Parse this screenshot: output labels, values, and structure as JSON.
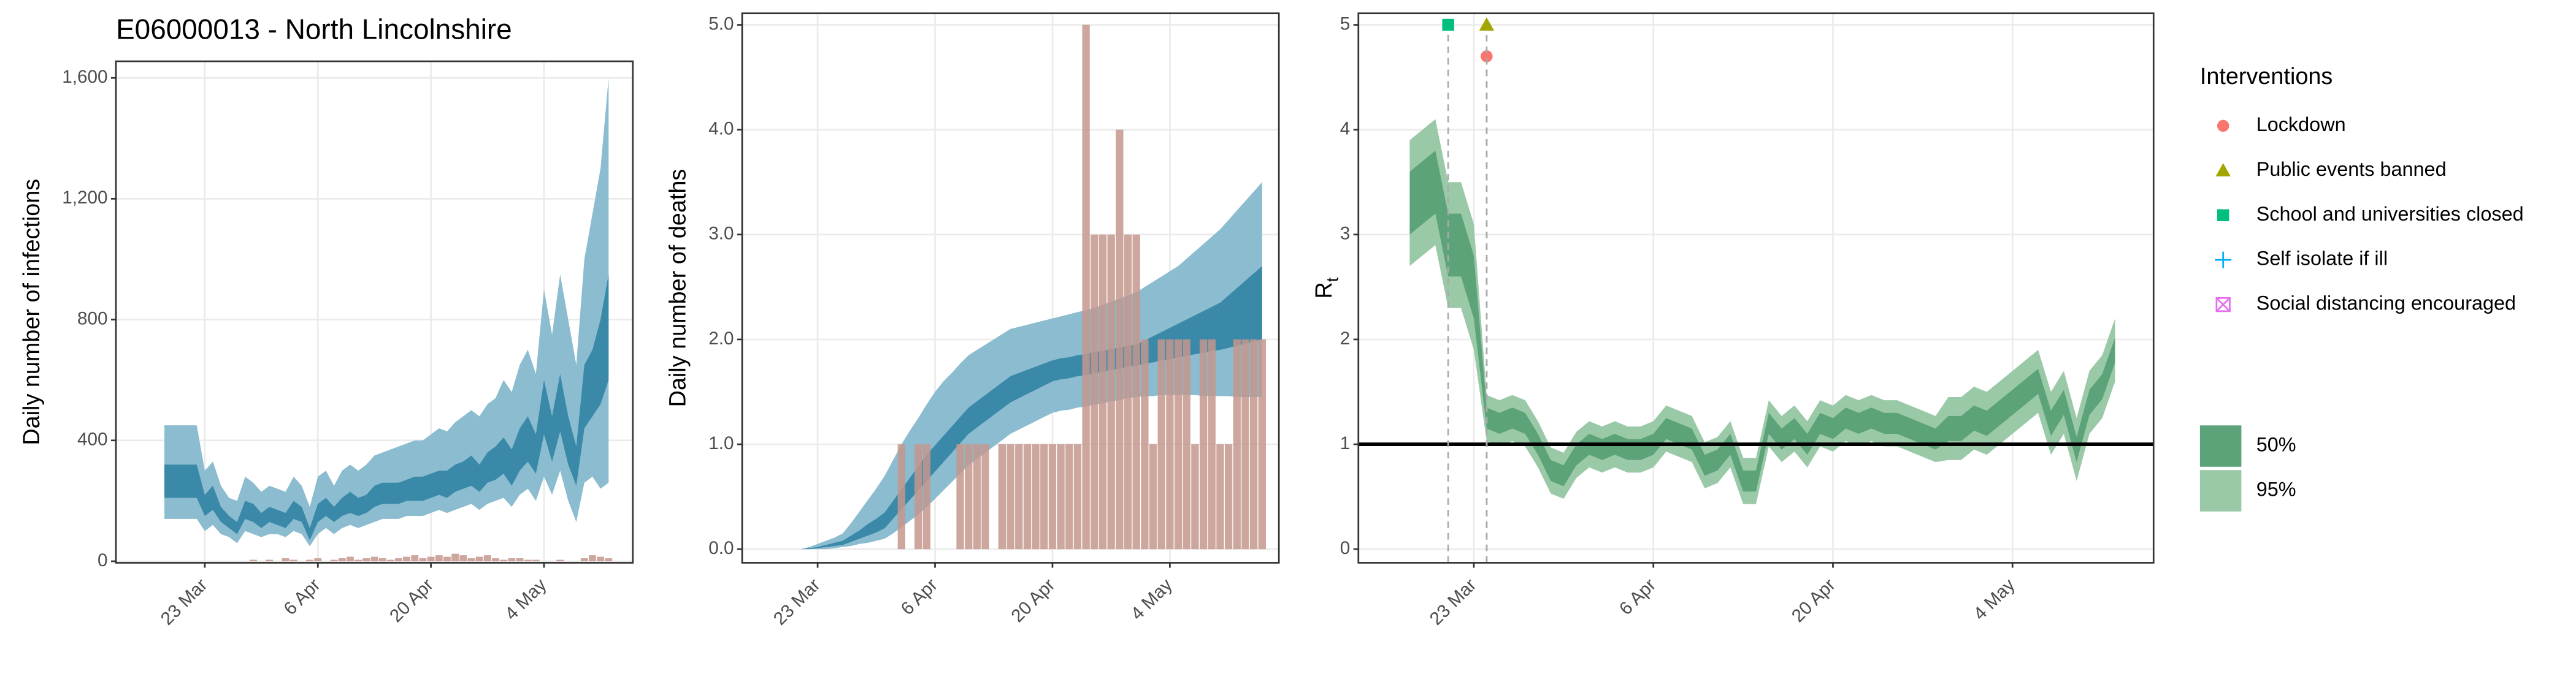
{
  "chart_data": [
    {
      "type": "area",
      "title": "E06000013 - North Lincolnshire",
      "ylabel": "Daily number of infections",
      "x": [
        "18 Mar",
        "19 Mar",
        "20 Mar",
        "21 Mar",
        "22 Mar",
        "23 Mar",
        "24 Mar",
        "25 Mar",
        "26 Mar",
        "27 Mar",
        "28 Mar",
        "29 Mar",
        "30 Mar",
        "31 Mar",
        "1 Apr",
        "2 Apr",
        "3 Apr",
        "4 Apr",
        "5 Apr",
        "6 Apr",
        "7 Apr",
        "8 Apr",
        "9 Apr",
        "10 Apr",
        "11 Apr",
        "12 Apr",
        "13 Apr",
        "14 Apr",
        "15 Apr",
        "16 Apr",
        "17 Apr",
        "18 Apr",
        "19 Apr",
        "20 Apr",
        "21 Apr",
        "22 Apr",
        "23 Apr",
        "24 Apr",
        "25 Apr",
        "26 Apr",
        "27 Apr",
        "28 Apr",
        "29 Apr",
        "30 Apr",
        "1 May",
        "2 May",
        "3 May",
        "4 May",
        "5 May",
        "6 May",
        "7 May",
        "8 May",
        "9 May",
        "10 May",
        "11 May",
        "12 May"
      ],
      "bands": [
        {
          "color": "#8bbccf",
          "upper": [
            450,
            450,
            450,
            450,
            450,
            300,
            330,
            250,
            210,
            200,
            280,
            260,
            230,
            250,
            240,
            230,
            280,
            250,
            180,
            280,
            300,
            250,
            300,
            320,
            300,
            320,
            350,
            360,
            370,
            380,
            390,
            400,
            400,
            420,
            440,
            430,
            460,
            480,
            500,
            480,
            520,
            540,
            600,
            560,
            650,
            700,
            620,
            900,
            750,
            950,
            800,
            650,
            1000,
            1150,
            1300,
            1600
          ],
          "lower": [
            140,
            140,
            140,
            140,
            140,
            100,
            120,
            90,
            80,
            60,
            100,
            90,
            80,
            90,
            90,
            80,
            100,
            90,
            50,
            90,
            110,
            90,
            110,
            120,
            110,
            120,
            130,
            140,
            140,
            140,
            150,
            150,
            150,
            160,
            170,
            160,
            170,
            180,
            190,
            170,
            190,
            200,
            210,
            180,
            220,
            240,
            200,
            280,
            220,
            300,
            200,
            130,
            260,
            280,
            240,
            260
          ]
        },
        {
          "color": "#3a89a8",
          "upper": [
            320,
            320,
            320,
            320,
            320,
            220,
            250,
            180,
            150,
            130,
            200,
            190,
            160,
            180,
            170,
            160,
            200,
            180,
            110,
            190,
            210,
            180,
            210,
            230,
            210,
            220,
            250,
            260,
            260,
            260,
            270,
            280,
            280,
            290,
            300,
            300,
            320,
            330,
            350,
            320,
            360,
            380,
            410,
            370,
            440,
            480,
            420,
            600,
            480,
            620,
            480,
            380,
            650,
            700,
            800,
            950
          ],
          "lower": [
            210,
            210,
            210,
            210,
            210,
            150,
            170,
            130,
            110,
            90,
            140,
            130,
            110,
            130,
            120,
            110,
            140,
            130,
            70,
            130,
            150,
            130,
            150,
            160,
            150,
            160,
            180,
            190,
            190,
            190,
            200,
            200,
            200,
            210,
            220,
            210,
            230,
            240,
            250,
            230,
            260,
            270,
            290,
            250,
            300,
            330,
            290,
            420,
            330,
            430,
            320,
            250,
            440,
            480,
            520,
            600
          ]
        }
      ],
      "bars": {
        "color": "#c4978d",
        "values": [
          null,
          null,
          null,
          null,
          null,
          null,
          null,
          null,
          null,
          null,
          null,
          5,
          0,
          5,
          0,
          10,
          5,
          0,
          5,
          10,
          0,
          5,
          10,
          15,
          5,
          10,
          15,
          10,
          5,
          10,
          15,
          20,
          10,
          15,
          20,
          15,
          25,
          20,
          10,
          15,
          20,
          10,
          5,
          10,
          10,
          5,
          5,
          0,
          0,
          5,
          0,
          0,
          10,
          20,
          15,
          10
        ]
      },
      "xlim": [
        "12 Mar",
        "15 May"
      ],
      "xticks": [
        "23 Mar",
        "6 Apr",
        "20 Apr",
        "4 May"
      ],
      "ylim": [
        -5,
        1655
      ],
      "yticks": [
        0,
        400,
        800,
        {
          "value": 1200,
          "label": "1,200"
        },
        {
          "value": 1600,
          "label": "1,600"
        }
      ],
      "grid": true
    },
    {
      "type": "area",
      "ylabel": "Daily number of deaths",
      "x": [
        "21 Mar",
        "22 Mar",
        "23 Mar",
        "24 Mar",
        "25 Mar",
        "26 Mar",
        "27 Mar",
        "28 Mar",
        "29 Mar",
        "30 Mar",
        "31 Mar",
        "1 Apr",
        "2 Apr",
        "3 Apr",
        "4 Apr",
        "5 Apr",
        "6 Apr",
        "7 Apr",
        "8 Apr",
        "9 Apr",
        "10 Apr",
        "11 Apr",
        "12 Apr",
        "13 Apr",
        "14 Apr",
        "15 Apr",
        "16 Apr",
        "17 Apr",
        "18 Apr",
        "19 Apr",
        "20 Apr",
        "21 Apr",
        "22 Apr",
        "23 Apr",
        "24 Apr",
        "25 Apr",
        "26 Apr",
        "27 Apr",
        "28 Apr",
        "29 Apr",
        "30 Apr",
        "1 May",
        "2 May",
        "3 May",
        "4 May",
        "5 May",
        "6 May",
        "7 May",
        "8 May",
        "9 May",
        "10 May",
        "11 May",
        "12 May",
        "13 May",
        "14 May",
        "15 May"
      ],
      "bands": [
        {
          "color": "#8bbccf",
          "upper": [
            0,
            0.02,
            0.05,
            0.08,
            0.11,
            0.15,
            0.25,
            0.36,
            0.47,
            0.58,
            0.7,
            0.85,
            1.0,
            1.13,
            1.25,
            1.38,
            1.5,
            1.6,
            1.68,
            1.77,
            1.85,
            1.9,
            1.95,
            2.0,
            2.05,
            2.1,
            2.12,
            2.14,
            2.16,
            2.18,
            2.2,
            2.22,
            2.24,
            2.26,
            2.28,
            2.3,
            2.33,
            2.36,
            2.39,
            2.42,
            2.45,
            2.5,
            2.55,
            2.6,
            2.65,
            2.7,
            2.77,
            2.84,
            2.91,
            2.98,
            3.05,
            3.14,
            3.23,
            3.32,
            3.41,
            3.5
          ],
          "lower": [
            0,
            0,
            0,
            0,
            0.01,
            0.02,
            0.03,
            0.05,
            0.06,
            0.08,
            0.1,
            0.15,
            0.21,
            0.27,
            0.33,
            0.4,
            0.48,
            0.56,
            0.64,
            0.72,
            0.8,
            0.86,
            0.92,
            0.98,
            1.04,
            1.1,
            1.14,
            1.18,
            1.22,
            1.26,
            1.3,
            1.32,
            1.33,
            1.35,
            1.36,
            1.38,
            1.39,
            1.41,
            1.42,
            1.44,
            1.45,
            1.46,
            1.46,
            1.47,
            1.47,
            1.47,
            1.47,
            1.47,
            1.46,
            1.46,
            1.46,
            1.46,
            1.45,
            1.45,
            1.45,
            1.45
          ]
        },
        {
          "color": "#3a89a8",
          "upper": [
            0,
            0.01,
            0.02,
            0.04,
            0.06,
            0.08,
            0.13,
            0.18,
            0.24,
            0.29,
            0.35,
            0.46,
            0.57,
            0.68,
            0.79,
            0.9,
            0.99,
            1.08,
            1.17,
            1.26,
            1.35,
            1.41,
            1.47,
            1.53,
            1.59,
            1.65,
            1.68,
            1.71,
            1.74,
            1.77,
            1.8,
            1.82,
            1.83,
            1.85,
            1.86,
            1.88,
            1.89,
            1.91,
            1.92,
            1.94,
            1.95,
            1.99,
            2.03,
            2.07,
            2.11,
            2.15,
            2.19,
            2.23,
            2.27,
            2.31,
            2.35,
            2.42,
            2.49,
            2.56,
            2.63,
            2.7
          ],
          "lower": [
            0,
            0,
            0.01,
            0.02,
            0.03,
            0.04,
            0.07,
            0.1,
            0.13,
            0.16,
            0.2,
            0.29,
            0.38,
            0.47,
            0.56,
            0.65,
            0.74,
            0.83,
            0.92,
            1.01,
            1.1,
            1.16,
            1.22,
            1.28,
            1.34,
            1.4,
            1.44,
            1.48,
            1.52,
            1.56,
            1.6,
            1.62,
            1.63,
            1.65,
            1.66,
            1.68,
            1.69,
            1.71,
            1.72,
            1.74,
            1.75,
            1.77,
            1.78,
            1.8,
            1.81,
            1.83,
            1.84,
            1.86,
            1.87,
            1.89,
            1.9,
            1.92,
            1.94,
            1.96,
            1.98,
            2.0
          ]
        }
      ],
      "bars": {
        "color": "#c4978d",
        "values": [
          0,
          0,
          0,
          0,
          0,
          0,
          0,
          0,
          0,
          0,
          0,
          0,
          1,
          0,
          1,
          1,
          0,
          0,
          0,
          1,
          1,
          1,
          1,
          0,
          1,
          1,
          1,
          1,
          1,
          1,
          1,
          1,
          1,
          1,
          5,
          3,
          3,
          3,
          4,
          3,
          3,
          2,
          1,
          2,
          2,
          2,
          2,
          1,
          2,
          2,
          1,
          1,
          2,
          2,
          2,
          2
        ]
      },
      "xlim": [
        "14 Mar",
        "17 May"
      ],
      "xticks": [
        "23 Mar",
        "6 Apr",
        "20 Apr",
        "4 May"
      ],
      "ylim": [
        -0.13,
        5.11
      ],
      "yticks": [
        {
          "value": 0,
          "label": "0.0"
        },
        {
          "value": 1,
          "label": "1.0"
        },
        {
          "value": 2,
          "label": "2.0"
        },
        {
          "value": 3,
          "label": "3.0"
        },
        {
          "value": 4,
          "label": "4.0"
        },
        {
          "value": 5,
          "label": "5.0"
        }
      ],
      "grid": true
    },
    {
      "type": "area",
      "ylabel": "R",
      "ylabel_subscript": "t",
      "x": [
        "18 Mar",
        "19 Mar",
        "20 Mar",
        "21 Mar",
        "22 Mar",
        "23 Mar",
        "24 Mar",
        "25 Mar",
        "26 Mar",
        "27 Mar",
        "28 Mar",
        "29 Mar",
        "30 Mar",
        "31 Mar",
        "1 Apr",
        "2 Apr",
        "3 Apr",
        "4 Apr",
        "5 Apr",
        "6 Apr",
        "7 Apr",
        "8 Apr",
        "9 Apr",
        "10 Apr",
        "11 Apr",
        "12 Apr",
        "13 Apr",
        "14 Apr",
        "15 Apr",
        "16 Apr",
        "17 Apr",
        "18 Apr",
        "19 Apr",
        "20 Apr",
        "21 Apr",
        "22 Apr",
        "23 Apr",
        "24 Apr",
        "25 Apr",
        "26 Apr",
        "27 Apr",
        "28 Apr",
        "29 Apr",
        "30 Apr",
        "1 May",
        "2 May",
        "3 May",
        "4 May",
        "5 May",
        "6 May",
        "7 May",
        "8 May",
        "9 May",
        "10 May",
        "11 May",
        "12 May"
      ],
      "bands": [
        {
          "name": "95%",
          "color": "#9ac9a8",
          "upper": [
            3.9,
            4.0,
            4.1,
            3.5,
            3.5,
            3.1,
            1.47,
            1.42,
            1.47,
            1.42,
            1.22,
            0.97,
            0.92,
            1.12,
            1.22,
            1.17,
            1.22,
            1.17,
            1.17,
            1.22,
            1.37,
            1.32,
            1.27,
            1.02,
            1.07,
            1.22,
            0.87,
            0.87,
            1.42,
            1.27,
            1.37,
            1.22,
            1.42,
            1.37,
            1.47,
            1.42,
            1.47,
            1.42,
            1.42,
            1.37,
            1.32,
            1.27,
            1.45,
            1.45,
            1.55,
            1.5,
            1.6,
            1.7,
            1.8,
            1.9,
            1.5,
            1.7,
            1.25,
            1.7,
            1.85,
            2.2
          ],
          "lower": [
            2.7,
            2.8,
            2.9,
            2.3,
            2.3,
            1.9,
            1.03,
            0.98,
            1.03,
            0.98,
            0.78,
            0.53,
            0.48,
            0.68,
            0.78,
            0.73,
            0.78,
            0.73,
            0.73,
            0.78,
            0.93,
            0.88,
            0.83,
            0.58,
            0.63,
            0.78,
            0.43,
            0.43,
            0.98,
            0.83,
            0.93,
            0.78,
            0.98,
            0.93,
            1.03,
            0.98,
            1.03,
            0.98,
            0.98,
            0.93,
            0.88,
            0.83,
            0.85,
            0.85,
            0.95,
            0.9,
            1.0,
            1.1,
            1.2,
            1.3,
            0.9,
            1.1,
            0.65,
            1.1,
            1.25,
            1.6
          ]
        },
        {
          "name": "50%",
          "color": "#5da37a",
          "upper": [
            3.6,
            3.7,
            3.8,
            3.2,
            3.2,
            2.8,
            1.35,
            1.3,
            1.35,
            1.3,
            1.1,
            0.85,
            0.8,
            1.0,
            1.1,
            1.05,
            1.1,
            1.05,
            1.05,
            1.1,
            1.25,
            1.2,
            1.15,
            0.9,
            0.95,
            1.1,
            0.75,
            0.75,
            1.3,
            1.15,
            1.25,
            1.1,
            1.3,
            1.25,
            1.35,
            1.3,
            1.35,
            1.3,
            1.3,
            1.25,
            1.2,
            1.15,
            1.27,
            1.27,
            1.37,
            1.32,
            1.42,
            1.52,
            1.62,
            1.72,
            1.32,
            1.52,
            1.07,
            1.52,
            1.67,
            2.02
          ],
          "lower": [
            3.0,
            3.1,
            3.2,
            2.6,
            2.6,
            2.2,
            1.15,
            1.1,
            1.15,
            1.1,
            0.9,
            0.65,
            0.6,
            0.8,
            0.9,
            0.85,
            0.9,
            0.85,
            0.85,
            0.9,
            1.05,
            1.0,
            0.95,
            0.7,
            0.75,
            0.9,
            0.55,
            0.55,
            1.1,
            0.95,
            1.05,
            0.9,
            1.1,
            1.05,
            1.15,
            1.1,
            1.15,
            1.1,
            1.1,
            1.05,
            1.0,
            0.95,
            1.03,
            1.03,
            1.13,
            1.08,
            1.18,
            1.28,
            1.38,
            1.48,
            1.08,
            1.28,
            0.83,
            1.28,
            1.43,
            1.78
          ]
        }
      ],
      "hline": 1,
      "xlim": [
        "14 Mar",
        "15 May"
      ],
      "xticks": [
        "23 Mar",
        "6 Apr",
        "20 Apr",
        "4 May"
      ],
      "ylim": [
        -0.13,
        5.11
      ],
      "yticks": [
        0,
        1,
        2,
        3,
        4,
        5
      ],
      "grid": true
    }
  ],
  "legend": {
    "title": "Interventions",
    "items": [
      {
        "name": "Lockdown",
        "shape": "circle",
        "color": "#F8766D",
        "x": "24 Mar",
        "y": 4.7
      },
      {
        "name": "Public events banned",
        "shape": "triangle",
        "color": "#A3A500",
        "x": "24 Mar",
        "y": 5
      },
      {
        "name": "School and universities closed",
        "shape": "square",
        "color": "#00BF7D",
        "x": "21 Mar",
        "y": 5
      },
      {
        "name": "Self isolate if ill",
        "shape": "plus",
        "color": "#00B0F6"
      },
      {
        "name": "Social distancing encouraged",
        "shape": "boxcross",
        "color": "#E76BF3"
      }
    ]
  }
}
